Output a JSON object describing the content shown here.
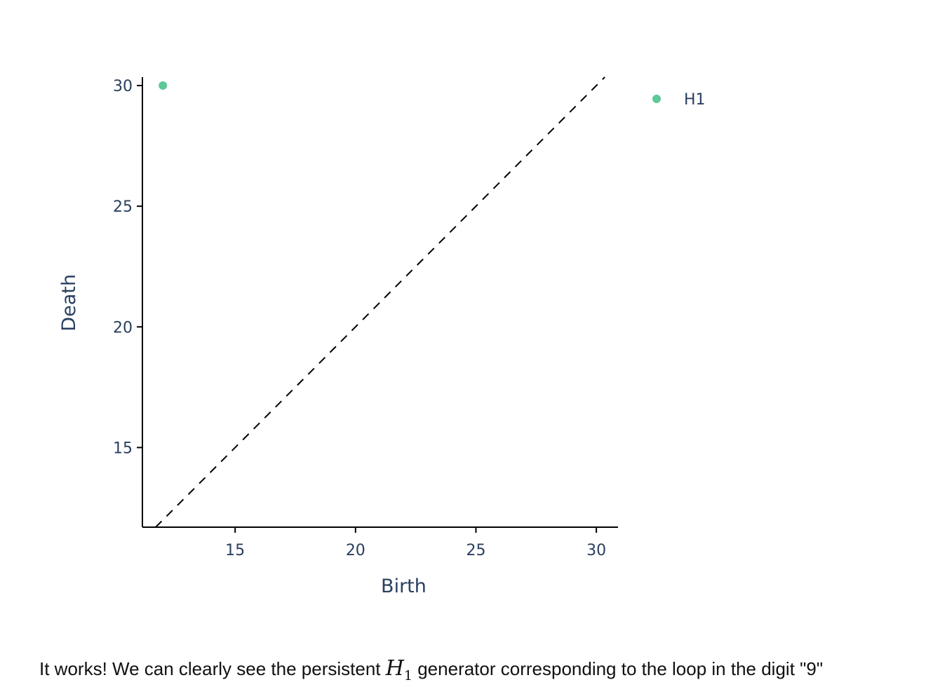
{
  "chart_data": {
    "type": "scatter",
    "xlabel": "Birth",
    "ylabel": "Death",
    "xlim": [
      11.15,
      30.9
    ],
    "ylim": [
      11.7,
      30.35
    ],
    "xticks": [
      15,
      20,
      25,
      30
    ],
    "yticks": [
      15,
      20,
      25,
      30
    ],
    "grid": false,
    "legend_position": "top-right",
    "diagonal": {
      "style": "dashed",
      "color": "#000000"
    },
    "series": [
      {
        "name": "H1",
        "color": "#5dc898",
        "points": [
          {
            "x": 12.0,
            "y": 30.0
          }
        ]
      }
    ]
  },
  "caption": {
    "before": "It works! We can clearly see the persistent ",
    "math_base": "H",
    "math_sub": "1",
    "after": " generator corresponding to the loop in the digit \"9\""
  }
}
